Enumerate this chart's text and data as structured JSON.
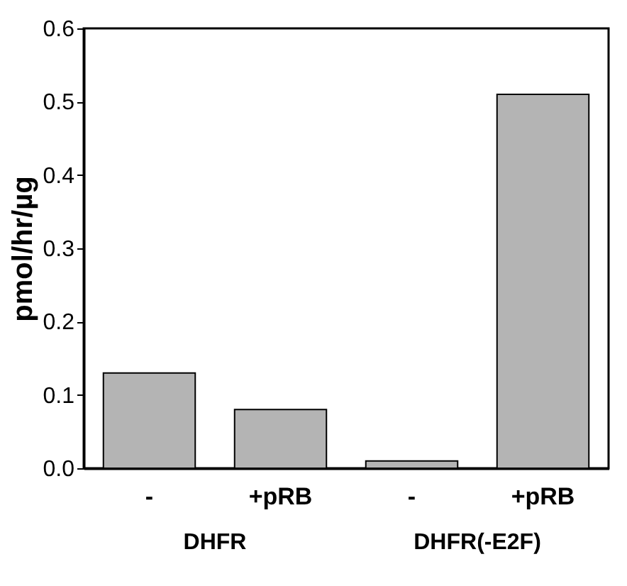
{
  "chart_data": {
    "type": "bar",
    "ylabel": "pmol/hr/µg",
    "categories": [
      "-",
      "+pRB",
      "-",
      "+pRB"
    ],
    "values": [
      0.13,
      0.08,
      0.01,
      0.51
    ],
    "color": "#b4b4b4",
    "ylim": [
      0,
      0.6
    ],
    "yticks": [
      {
        "value": 0,
        "label": "0.0"
      },
      0.1,
      0.2,
      0.3,
      0.4,
      0.5,
      0.6
    ],
    "grid": false,
    "annotations": [
      "DHFR",
      "DHFR(-E2F)"
    ]
  }
}
